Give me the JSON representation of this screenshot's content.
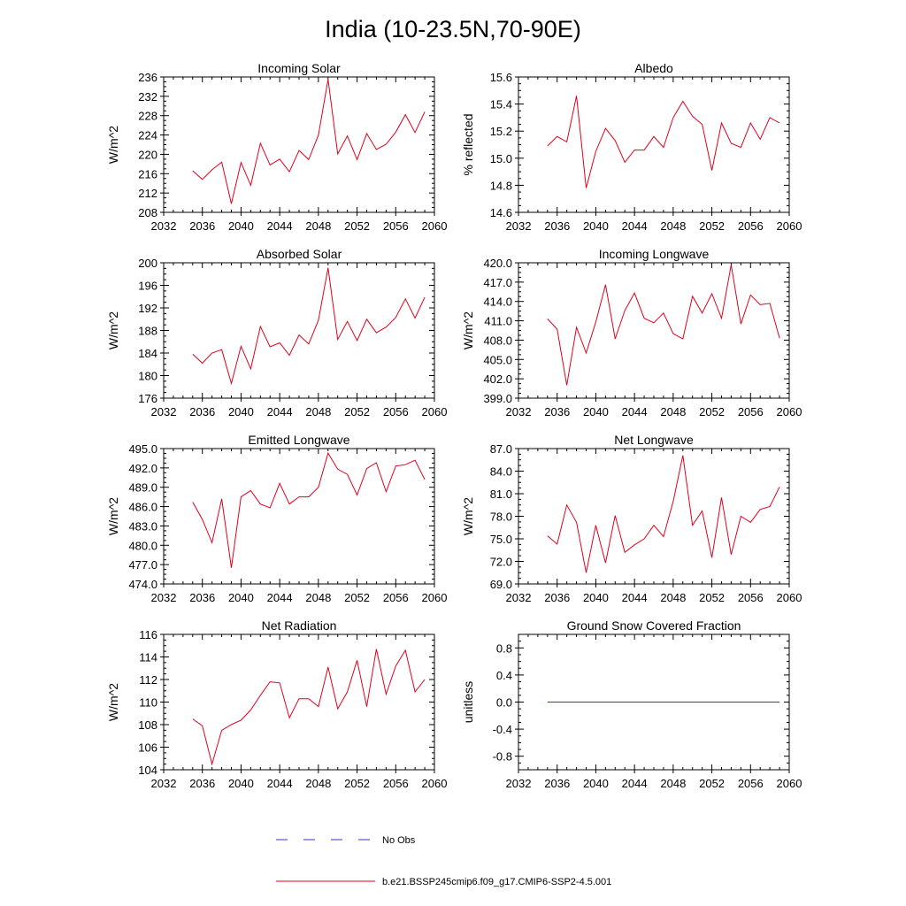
{
  "figure": {
    "title": "India (10-23.5N,70-90E)"
  },
  "legend": {
    "placement": "bottom-center",
    "entries": [
      {
        "label": "No Obs",
        "color": "#3333cc",
        "style": "dashed"
      },
      {
        "label": "b.e21.BSSP245cmip6.f09_g17.CMIP6-SSP2-4.5.001",
        "color": "#e0001b",
        "style": "solid"
      }
    ]
  },
  "chart_data": [
    {
      "type": "line",
      "title": "Incoming Solar",
      "ylabel": "W/m^2",
      "xlim": [
        2032,
        2060
      ],
      "ylim": [
        208,
        236
      ],
      "xticks": [
        "2032",
        "2036",
        "2040",
        "2044",
        "2048",
        "2052",
        "2056",
        "2060"
      ],
      "yticks": [
        "208",
        "212",
        "216",
        "220",
        "224",
        "228",
        "232",
        "236"
      ],
      "x": [
        2035,
        2036,
        2037,
        2038,
        2039,
        2040,
        2041,
        2042,
        2043,
        2044,
        2045,
        2046,
        2047,
        2048,
        2049,
        2050,
        2051,
        2052,
        2053,
        2054,
        2055,
        2056,
        2057,
        2058,
        2059
      ],
      "series": [
        {
          "color": "#e0001b",
          "values": [
            216.6,
            214.8,
            216.8,
            218.4,
            209.8,
            218.3,
            213.6,
            222.3,
            217.8,
            219.0,
            216.4,
            220.8,
            218.9,
            224.0,
            235.5,
            220.1,
            223.8,
            218.9,
            224.3,
            221.0,
            222.1,
            224.6,
            228.2,
            224.5,
            228.8
          ]
        }
      ]
    },
    {
      "type": "line",
      "title": "Albedo",
      "ylabel": "% reflected",
      "xlim": [
        2032,
        2060
      ],
      "ylim": [
        14.6,
        15.6
      ],
      "xticks": [
        "2032",
        "2036",
        "2040",
        "2044",
        "2048",
        "2052",
        "2056",
        "2060"
      ],
      "yticks": [
        "14.6",
        "14.8",
        "15.0",
        "15.2",
        "15.4",
        "15.6"
      ],
      "x": [
        2035,
        2036,
        2037,
        2038,
        2039,
        2040,
        2041,
        2042,
        2043,
        2044,
        2045,
        2046,
        2047,
        2048,
        2049,
        2050,
        2051,
        2052,
        2053,
        2054,
        2055,
        2056,
        2057,
        2058,
        2059
      ],
      "series": [
        {
          "color": "#e0001b",
          "values": [
            15.09,
            15.16,
            15.12,
            15.46,
            14.78,
            15.05,
            15.22,
            15.13,
            14.97,
            15.06,
            15.06,
            15.16,
            15.08,
            15.3,
            15.42,
            15.31,
            15.25,
            14.91,
            15.26,
            15.11,
            15.08,
            15.26,
            15.14,
            15.3,
            15.26
          ]
        }
      ]
    },
    {
      "type": "line",
      "title": "Absorbed Solar",
      "ylabel": "W/m^2",
      "xlim": [
        2032,
        2060
      ],
      "ylim": [
        176,
        200
      ],
      "xticks": [
        "2032",
        "2036",
        "2040",
        "2044",
        "2048",
        "2052",
        "2056",
        "2060"
      ],
      "yticks": [
        "176",
        "180",
        "184",
        "188",
        "192",
        "196",
        "200"
      ],
      "x": [
        2035,
        2036,
        2037,
        2038,
        2039,
        2040,
        2041,
        2042,
        2043,
        2044,
        2045,
        2046,
        2047,
        2048,
        2049,
        2050,
        2051,
        2052,
        2053,
        2054,
        2055,
        2056,
        2057,
        2058,
        2059
      ],
      "series": [
        {
          "color": "#e0001b",
          "values": [
            183.8,
            182.2,
            184.0,
            184.6,
            178.6,
            185.2,
            181.2,
            188.7,
            185.1,
            185.8,
            183.6,
            187.2,
            185.6,
            189.8,
            199.1,
            186.4,
            189.6,
            186.2,
            190.0,
            187.6,
            188.6,
            190.3,
            193.6,
            190.2,
            193.9
          ]
        }
      ]
    },
    {
      "type": "line",
      "title": "Incoming Longwave",
      "ylabel": "W/m^2",
      "xlim": [
        2032,
        2060
      ],
      "ylim": [
        399.0,
        420.0
      ],
      "xticks": [
        "2032",
        "2036",
        "2040",
        "2044",
        "2048",
        "2052",
        "2056",
        "2060"
      ],
      "yticks": [
        "399.0",
        "402.0",
        "405.0",
        "408.0",
        "411.0",
        "414.0",
        "417.0",
        "420.0"
      ],
      "x": [
        2035,
        2036,
        2037,
        2038,
        2039,
        2040,
        2041,
        2042,
        2043,
        2044,
        2045,
        2046,
        2047,
        2048,
        2049,
        2050,
        2051,
        2052,
        2053,
        2054,
        2055,
        2056,
        2057,
        2058,
        2059
      ],
      "series": [
        {
          "color": "#e0001b",
          "values": [
            411.3,
            409.7,
            401.0,
            410.0,
            406.0,
            410.8,
            416.6,
            408.2,
            412.6,
            415.3,
            411.4,
            410.7,
            412.2,
            409.0,
            408.2,
            414.8,
            412.2,
            415.2,
            411.4,
            419.7,
            410.5,
            415.0,
            413.5,
            413.7,
            408.3
          ]
        }
      ]
    },
    {
      "type": "line",
      "title": "Emitted Longwave",
      "ylabel": "W/m^2",
      "xlim": [
        2032,
        2060
      ],
      "ylim": [
        474.0,
        495.0
      ],
      "xticks": [
        "2032",
        "2036",
        "2040",
        "2044",
        "2048",
        "2052",
        "2056",
        "2060"
      ],
      "yticks": [
        "474.0",
        "477.0",
        "480.0",
        "483.0",
        "486.0",
        "489.0",
        "492.0",
        "495.0"
      ],
      "x": [
        2035,
        2036,
        2037,
        2038,
        2039,
        2040,
        2041,
        2042,
        2043,
        2044,
        2045,
        2046,
        2047,
        2048,
        2049,
        2050,
        2051,
        2052,
        2053,
        2054,
        2055,
        2056,
        2057,
        2058,
        2059
      ],
      "series": [
        {
          "color": "#e0001b",
          "values": [
            486.7,
            484.0,
            480.4,
            487.2,
            476.5,
            487.5,
            488.5,
            486.4,
            485.8,
            489.6,
            486.4,
            487.5,
            487.5,
            489.0,
            494.3,
            491.8,
            491.0,
            487.8,
            491.9,
            492.8,
            488.3,
            492.3,
            492.5,
            493.2,
            490.2
          ]
        }
      ]
    },
    {
      "type": "line",
      "title": "Net Longwave",
      "ylabel": "W/m^2",
      "xlim": [
        2032,
        2060
      ],
      "ylim": [
        69.0,
        87.0
      ],
      "xticks": [
        "2032",
        "2036",
        "2040",
        "2044",
        "2048",
        "2052",
        "2056",
        "2060"
      ],
      "yticks": [
        "69.0",
        "72.0",
        "75.0",
        "78.0",
        "81.0",
        "84.0",
        "87.0"
      ],
      "x": [
        2035,
        2036,
        2037,
        2038,
        2039,
        2040,
        2041,
        2042,
        2043,
        2044,
        2045,
        2046,
        2047,
        2048,
        2049,
        2050,
        2051,
        2052,
        2053,
        2054,
        2055,
        2056,
        2057,
        2058,
        2059
      ],
      "series": [
        {
          "color": "#e0001b",
          "values": [
            75.4,
            74.3,
            79.5,
            77.2,
            70.5,
            76.8,
            71.8,
            78.1,
            73.2,
            74.2,
            75.0,
            76.8,
            75.3,
            80.0,
            86.1,
            76.8,
            78.7,
            72.5,
            80.5,
            72.9,
            78.0,
            77.2,
            78.9,
            79.3,
            81.9
          ]
        }
      ]
    },
    {
      "type": "line",
      "title": "Net Radiation",
      "ylabel": "W/m^2",
      "xlim": [
        2032,
        2060
      ],
      "ylim": [
        104,
        116
      ],
      "xticks": [
        "2032",
        "2036",
        "2040",
        "2044",
        "2048",
        "2052",
        "2056",
        "2060"
      ],
      "yticks": [
        "104",
        "106",
        "108",
        "110",
        "112",
        "114",
        "116"
      ],
      "x": [
        2035,
        2036,
        2037,
        2038,
        2039,
        2040,
        2041,
        2042,
        2043,
        2044,
        2045,
        2046,
        2047,
        2048,
        2049,
        2050,
        2051,
        2052,
        2053,
        2054,
        2055,
        2056,
        2057,
        2058,
        2059
      ],
      "series": [
        {
          "color": "#e0001b",
          "values": [
            108.5,
            107.9,
            104.5,
            107.5,
            108.0,
            108.4,
            109.3,
            110.6,
            111.8,
            111.7,
            108.6,
            110.3,
            110.3,
            109.6,
            113.1,
            109.4,
            110.9,
            113.7,
            109.6,
            114.7,
            110.7,
            113.2,
            114.6,
            110.9,
            112.0
          ]
        }
      ]
    },
    {
      "type": "line",
      "title": "Ground Snow Covered Fraction",
      "ylabel": "unitless",
      "xlim": [
        2032,
        2060
      ],
      "ylim": [
        -1.0,
        1.0
      ],
      "xticks": [
        "2032",
        "2036",
        "2040",
        "2044",
        "2048",
        "2052",
        "2056",
        "2060"
      ],
      "yticks": [
        "-0.8",
        "-0.4",
        "0.0",
        "0.4",
        "0.8"
      ],
      "x": [
        2035,
        2036,
        2037,
        2038,
        2039,
        2040,
        2041,
        2042,
        2043,
        2044,
        2045,
        2046,
        2047,
        2048,
        2049,
        2050,
        2051,
        2052,
        2053,
        2054,
        2055,
        2056,
        2057,
        2058,
        2059
      ],
      "series": [
        {
          "color": "#e0001b",
          "values": [
            0,
            0,
            0,
            0,
            0,
            0,
            0,
            0,
            0,
            0,
            0,
            0,
            0,
            0,
            0,
            0,
            0,
            0,
            0,
            0,
            0,
            0,
            0,
            0,
            0
          ]
        }
      ]
    }
  ]
}
